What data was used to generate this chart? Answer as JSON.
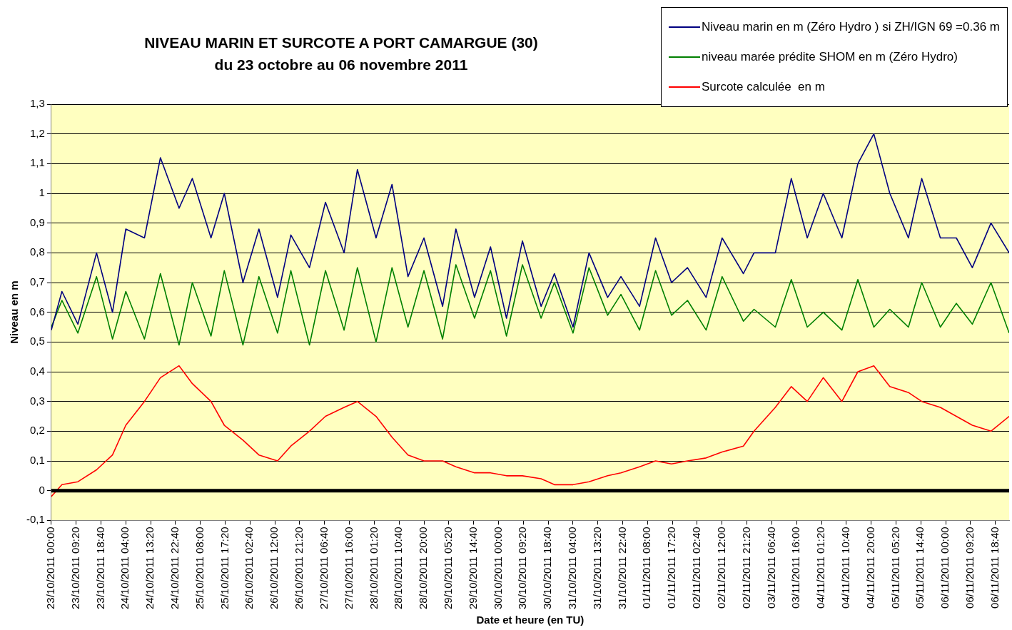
{
  "chart_data": {
    "type": "line",
    "title": "NIVEAU MARIN ET SURCOTE A PORT CAMARGUE (30)",
    "subtitle": "du 23 octobre au 06 novembre 2011",
    "xlabel": "Date et heure (en TU)",
    "ylabel": "Niveau en m",
    "x": [
      "2011-10-23T00:00",
      "2011-10-23T04:00",
      "2011-10-23T10:00",
      "2011-10-23T17:00",
      "2011-10-23T23:00",
      "2011-10-24T04:00",
      "2011-10-24T11:00",
      "2011-10-24T17:00",
      "2011-10-25T00:00",
      "2011-10-25T05:00",
      "2011-10-25T12:00",
      "2011-10-25T17:00",
      "2011-10-26T00:00",
      "2011-10-26T06:00",
      "2011-10-26T13:00",
      "2011-10-26T18:00",
      "2011-10-27T01:00",
      "2011-10-27T07:00",
      "2011-10-27T14:00",
      "2011-10-27T19:00",
      "2011-10-28T02:00",
      "2011-10-28T08:00",
      "2011-10-28T14:00",
      "2011-10-28T20:00",
      "2011-10-29T03:00",
      "2011-10-29T08:00",
      "2011-10-29T15:00",
      "2011-10-29T21:00",
      "2011-10-30T03:00",
      "2011-10-30T09:00",
      "2011-10-30T16:00",
      "2011-10-30T21:00",
      "2011-10-31T04:00",
      "2011-10-31T10:00",
      "2011-10-31T17:00",
      "2011-10-31T22:00",
      "2011-11-01T05:00",
      "2011-11-01T11:00",
      "2011-11-01T17:00",
      "2011-11-01T23:00",
      "2011-11-02T06:00",
      "2011-11-02T12:00",
      "2011-11-02T20:00",
      "2011-11-03T00:00",
      "2011-11-03T08:00",
      "2011-11-03T14:00",
      "2011-11-03T20:00",
      "2011-11-04T02:00",
      "2011-11-04T09:00",
      "2011-11-04T15:00",
      "2011-11-04T21:00",
      "2011-11-05T03:00",
      "2011-11-05T10:00",
      "2011-11-05T15:00",
      "2011-11-05T22:00",
      "2011-11-06T04:00",
      "2011-11-06T10:00",
      "2011-11-06T17:00",
      "2011-11-06T23:50"
    ],
    "series": [
      {
        "name": "Niveau marin en m (Zéro Hydro ) si ZH/IGN 69 =0.36 m",
        "color": "#000080",
        "values": [
          0.54,
          0.67,
          0.56,
          0.8,
          0.6,
          0.88,
          0.85,
          1.12,
          0.95,
          1.05,
          0.85,
          1.0,
          0.7,
          0.88,
          0.65,
          0.86,
          0.75,
          0.97,
          0.8,
          1.08,
          0.85,
          1.03,
          0.72,
          0.85,
          0.62,
          0.88,
          0.65,
          0.82,
          0.58,
          0.84,
          0.62,
          0.73,
          0.55,
          0.8,
          0.65,
          0.72,
          0.62,
          0.85,
          0.7,
          0.75,
          0.65,
          0.85,
          0.73,
          0.8,
          0.8,
          1.05,
          0.85,
          1.0,
          0.85,
          1.1,
          1.2,
          1.0,
          0.85,
          1.05,
          0.85,
          0.85,
          0.75,
          0.9,
          0.8
        ]
      },
      {
        "name": "niveau marée prédite SHOM en m (Zéro Hydro)",
        "color": "#008000",
        "values": [
          0.55,
          0.64,
          0.53,
          0.72,
          0.51,
          0.67,
          0.51,
          0.73,
          0.49,
          0.7,
          0.52,
          0.74,
          0.49,
          0.72,
          0.53,
          0.74,
          0.49,
          0.74,
          0.54,
          0.75,
          0.5,
          0.75,
          0.55,
          0.74,
          0.51,
          0.76,
          0.58,
          0.74,
          0.52,
          0.76,
          0.58,
          0.7,
          0.53,
          0.75,
          0.59,
          0.66,
          0.54,
          0.74,
          0.59,
          0.64,
          0.54,
          0.72,
          0.57,
          0.61,
          0.55,
          0.71,
          0.55,
          0.6,
          0.54,
          0.71,
          0.55,
          0.61,
          0.55,
          0.7,
          0.55,
          0.63,
          0.56,
          0.7,
          0.53
        ]
      },
      {
        "name": "Surcote calculée  en m",
        "color": "#ff0000",
        "values": [
          -0.02,
          0.02,
          0.03,
          0.07,
          0.12,
          0.22,
          0.3,
          0.38,
          0.42,
          0.36,
          0.3,
          0.22,
          0.17,
          0.12,
          0.1,
          0.15,
          0.2,
          0.25,
          0.28,
          0.3,
          0.25,
          0.18,
          0.12,
          0.1,
          0.1,
          0.08,
          0.06,
          0.06,
          0.05,
          0.05,
          0.04,
          0.02,
          0.02,
          0.03,
          0.05,
          0.06,
          0.08,
          0.1,
          0.09,
          0.1,
          0.11,
          0.13,
          0.15,
          0.2,
          0.28,
          0.35,
          0.3,
          0.38,
          0.3,
          0.4,
          0.42,
          0.35,
          0.33,
          0.3,
          0.28,
          0.25,
          0.22,
          0.2,
          0.25
        ]
      }
    ],
    "xlim": [
      "2011-10-23T00:00",
      "2011-11-06T23:50"
    ],
    "xticks": [
      {
        "value": "2011-10-23T00:00",
        "label": "23/10/2011 00:00"
      },
      {
        "value": "2011-10-23T09:20",
        "label": "23/10/2011 09:20"
      },
      {
        "value": "2011-10-23T18:40",
        "label": "23/10/2011 18:40"
      },
      {
        "value": "2011-10-24T04:00",
        "label": "24/10/2011 04:00"
      },
      {
        "value": "2011-10-24T13:20",
        "label": "24/10/2011 13:20"
      },
      {
        "value": "2011-10-24T22:40",
        "label": "24/10/2011 22:40"
      },
      {
        "value": "2011-10-25T08:00",
        "label": "25/10/2011 08:00"
      },
      {
        "value": "2011-10-25T17:20",
        "label": "25/10/2011 17:20"
      },
      {
        "value": "2011-10-26T02:40",
        "label": "26/10/2011 02:40"
      },
      {
        "value": "2011-10-26T12:00",
        "label": "26/10/2011 12:00"
      },
      {
        "value": "2011-10-26T21:20",
        "label": "26/10/2011 21:20"
      },
      {
        "value": "2011-10-27T06:40",
        "label": "27/10/2011 06:40"
      },
      {
        "value": "2011-10-27T16:00",
        "label": "27/10/2011 16:00"
      },
      {
        "value": "2011-10-28T01:20",
        "label": "28/10/2011 01:20"
      },
      {
        "value": "2011-10-28T10:40",
        "label": "28/10/2011 10:40"
      },
      {
        "value": "2011-10-28T20:00",
        "label": "28/10/2011 20:00"
      },
      {
        "value": "2011-10-29T05:20",
        "label": "29/10/2011 05:20"
      },
      {
        "value": "2011-10-29T14:40",
        "label": "29/10/2011 14:40"
      },
      {
        "value": "2011-10-30T00:00",
        "label": "30/10/2011 00:00"
      },
      {
        "value": "2011-10-30T09:20",
        "label": "30/10/2011 09:20"
      },
      {
        "value": "2011-10-30T18:40",
        "label": "30/10/2011 18:40"
      },
      {
        "value": "2011-10-31T04:00",
        "label": "31/10/2011 04:00"
      },
      {
        "value": "2011-10-31T13:20",
        "label": "31/10/2011 13:20"
      },
      {
        "value": "2011-10-31T22:40",
        "label": "31/10/2011 22:40"
      },
      {
        "value": "2011-11-01T08:00",
        "label": "01/11/2011 08:00"
      },
      {
        "value": "2011-11-01T17:20",
        "label": "01/11/2011 17:20"
      },
      {
        "value": "2011-11-02T02:40",
        "label": "02/11/2011 02:40"
      },
      {
        "value": "2011-11-02T12:00",
        "label": "02/11/2011 12:00"
      },
      {
        "value": "2011-11-02T21:20",
        "label": "02/11/2011 21:20"
      },
      {
        "value": "2011-11-03T06:40",
        "label": "03/11/2011 06:40"
      },
      {
        "value": "2011-11-03T16:00",
        "label": "03/11/2011 16:00"
      },
      {
        "value": "2011-11-04T01:20",
        "label": "04/11/2011 01:20"
      },
      {
        "value": "2011-11-04T10:40",
        "label": "04/11/2011 10:40"
      },
      {
        "value": "2011-11-04T20:00",
        "label": "04/11/2011 20:00"
      },
      {
        "value": "2011-11-05T05:20",
        "label": "05/11/2011 05:20"
      },
      {
        "value": "2011-11-05T14:40",
        "label": "05/11/2011 14:40"
      },
      {
        "value": "2011-11-06T00:00",
        "label": "06/11/2011 00:00"
      },
      {
        "value": "2011-11-06T09:20",
        "label": "06/11/2011 09:20"
      },
      {
        "value": "2011-11-06T18:40",
        "label": "06/11/2011 18:40"
      }
    ],
    "ylim": [
      -0.1,
      1.3
    ],
    "yticks": [
      {
        "value": -0.1,
        "label": "-0,1"
      },
      0,
      {
        "value": 0.1,
        "label": "0,1"
      },
      {
        "value": 0.2,
        "label": "0,2"
      },
      {
        "value": 0.3,
        "label": "0,3"
      },
      {
        "value": 0.4,
        "label": "0,4"
      },
      {
        "value": 0.5,
        "label": "0,5"
      },
      {
        "value": 0.6,
        "label": "0,6"
      },
      {
        "value": 0.7,
        "label": "0,7"
      },
      {
        "value": 0.8,
        "label": "0,8"
      },
      {
        "value": 0.9,
        "label": "0,9"
      },
      1,
      {
        "value": 1.1,
        "label": "1,1"
      },
      {
        "value": 1.2,
        "label": "1,2"
      },
      {
        "value": 1.3,
        "label": "1,3"
      }
    ],
    "ref_lines": [
      {
        "axis": "y",
        "value": 0,
        "color": "#000000"
      }
    ],
    "grid": "y",
    "legend": "top right",
    "marker": "none",
    "line_style": "solid"
  }
}
